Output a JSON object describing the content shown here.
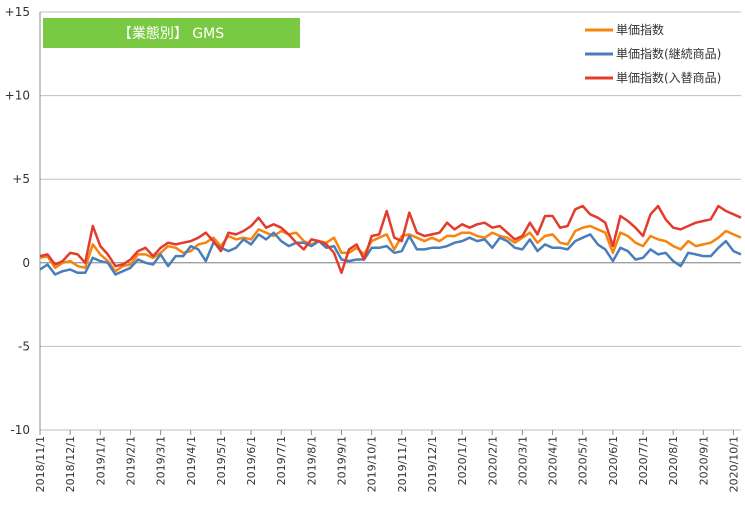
{
  "chart_data": {
    "type": "line",
    "title": "【業態別】 GMS",
    "title_box_color": "#7ac943",
    "ylim": [
      -10,
      15
    ],
    "y_ticks": [
      -10,
      -5,
      0,
      5,
      10,
      15
    ],
    "y_tick_labels": [
      "-10",
      "-5",
      "0",
      "+5",
      "+10",
      "+15"
    ],
    "grid": "horizontal",
    "legend_position": "top-right",
    "x_labels": [
      "2018/11/1",
      "2018/12/1",
      "2019/1/1",
      "2019/2/1",
      "2019/3/1",
      "2019/4/1",
      "2019/5/1",
      "2019/6/1",
      "2019/7/1",
      "2019/8/1",
      "2019/9/1",
      "2019/10/1",
      "2019/11/1",
      "2019/12/1",
      "2020/1/1",
      "2020/2/1",
      "2020/3/1",
      "2020/4/1",
      "2020/5/1",
      "2020/6/1",
      "2020/7/1",
      "2020/8/1",
      "2020/9/1",
      "2020/10/1"
    ],
    "points_per_label": 4,
    "series": [
      {
        "name": "単価指数",
        "color": "#f7840e",
        "values": [
          0.3,
          0.4,
          -0.3,
          0.0,
          0.1,
          -0.2,
          -0.3,
          1.1,
          0.5,
          0.1,
          -0.5,
          -0.2,
          -0.1,
          0.5,
          0.5,
          0.3,
          0.6,
          1.0,
          0.9,
          0.6,
          0.7,
          1.1,
          1.2,
          1.5,
          1.0,
          1.6,
          1.4,
          1.5,
          1.4,
          2.0,
          1.8,
          1.6,
          1.9,
          1.7,
          1.8,
          1.3,
          1.1,
          1.3,
          1.2,
          1.5,
          0.6,
          0.6,
          0.9,
          0.5,
          1.3,
          1.5,
          1.7,
          0.8,
          1.6,
          1.7,
          1.5,
          1.3,
          1.5,
          1.3,
          1.6,
          1.6,
          1.8,
          1.8,
          1.6,
          1.5,
          1.8,
          1.6,
          1.5,
          1.2,
          1.5,
          1.8,
          1.2,
          1.6,
          1.7,
          1.2,
          1.1,
          1.9,
          2.1,
          2.2,
          2.0,
          1.8,
          0.6,
          1.8,
          1.6,
          1.2,
          1.0,
          1.6,
          1.4,
          1.3,
          1.0,
          0.8,
          1.3,
          1.0,
          1.1,
          1.2,
          1.5,
          1.9,
          1.7,
          1.5
        ]
      },
      {
        "name": "単価指数(継続商品)",
        "color": "#4a7ebb",
        "values": [
          -0.4,
          -0.1,
          -0.7,
          -0.5,
          -0.4,
          -0.6,
          -0.6,
          0.3,
          0.1,
          0.0,
          -0.7,
          -0.5,
          -0.3,
          0.2,
          0.0,
          -0.1,
          0.5,
          -0.2,
          0.4,
          0.4,
          1.0,
          0.8,
          0.1,
          1.2,
          0.9,
          0.7,
          0.9,
          1.4,
          1.1,
          1.7,
          1.4,
          1.8,
          1.3,
          1.0,
          1.2,
          1.2,
          1.0,
          1.3,
          0.9,
          1.0,
          0.2,
          0.1,
          0.2,
          0.2,
          0.9,
          0.9,
          1.0,
          0.6,
          0.7,
          1.6,
          0.8,
          0.8,
          0.9,
          0.9,
          1.0,
          1.2,
          1.3,
          1.5,
          1.3,
          1.4,
          0.9,
          1.5,
          1.3,
          0.9,
          0.8,
          1.4,
          0.7,
          1.1,
          0.9,
          0.9,
          0.8,
          1.3,
          1.5,
          1.7,
          1.1,
          0.8,
          0.1,
          0.9,
          0.7,
          0.2,
          0.3,
          0.8,
          0.5,
          0.6,
          0.1,
          -0.2,
          0.6,
          0.5,
          0.4,
          0.4,
          0.9,
          1.3,
          0.7,
          0.5
        ]
      },
      {
        "name": "単価指数(入替商品)",
        "color": "#e33c2d",
        "values": [
          0.4,
          0.5,
          -0.1,
          0.1,
          0.6,
          0.5,
          0.0,
          2.2,
          1.0,
          0.5,
          -0.2,
          -0.1,
          0.2,
          0.7,
          0.9,
          0.4,
          0.9,
          1.2,
          1.1,
          1.2,
          1.3,
          1.5,
          1.8,
          1.3,
          0.7,
          1.8,
          1.7,
          1.9,
          2.2,
          2.7,
          2.1,
          2.3,
          2.1,
          1.7,
          1.2,
          0.8,
          1.4,
          1.3,
          1.1,
          0.6,
          -0.6,
          0.8,
          1.1,
          0.2,
          1.6,
          1.7,
          3.1,
          1.5,
          1.3,
          3.0,
          1.8,
          1.6,
          1.7,
          1.8,
          2.4,
          2.0,
          2.3,
          2.1,
          2.3,
          2.4,
          2.1,
          2.2,
          1.8,
          1.4,
          1.6,
          2.4,
          1.7,
          2.8,
          2.8,
          2.1,
          2.2,
          3.2,
          3.4,
          2.9,
          2.7,
          2.4,
          1.0,
          2.8,
          2.5,
          2.1,
          1.6,
          2.9,
          3.4,
          2.6,
          2.1,
          2.0,
          2.2,
          2.4,
          2.5,
          2.6,
          3.4,
          3.1,
          2.9,
          2.7
        ]
      }
    ]
  }
}
